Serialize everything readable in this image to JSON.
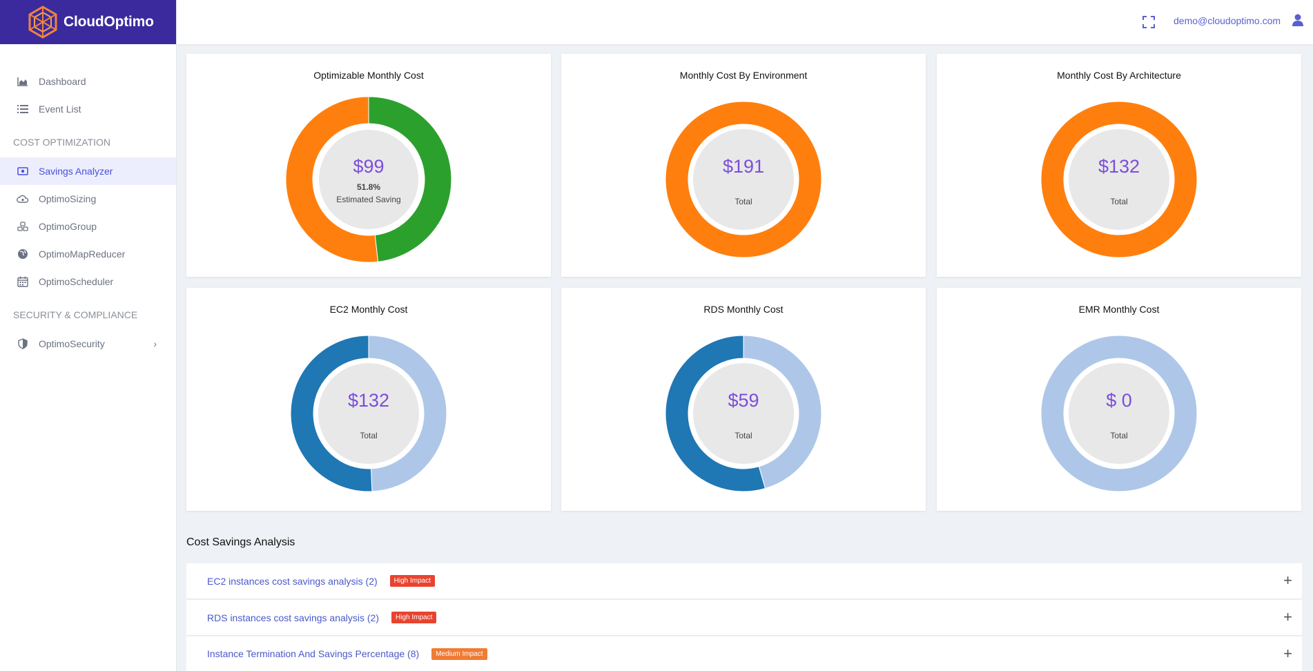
{
  "app": {
    "brand": "CloudOptimo"
  },
  "header": {
    "user_email": "demo@cloudoptimo.com"
  },
  "sidebar": {
    "items_top": [
      {
        "label": "Dashboard",
        "icon": "area-chart-icon"
      },
      {
        "label": "Event List",
        "icon": "list-icon"
      }
    ],
    "section_cost": "COST OPTIMIZATION",
    "items_cost": [
      {
        "label": "Savings Analyzer",
        "icon": "money-icon",
        "active": true
      },
      {
        "label": "OptimoSizing",
        "icon": "cloud-sizing-icon"
      },
      {
        "label": "OptimoGroup",
        "icon": "cubes-icon"
      },
      {
        "label": "OptimoMapReducer",
        "icon": "globe-icon"
      },
      {
        "label": "OptimoScheduler",
        "icon": "calendar-icon"
      }
    ],
    "section_security": "SECURITY & COMPLIANCE",
    "items_security": [
      {
        "label": "OptimoSecurity",
        "icon": "shield-icon"
      }
    ]
  },
  "cards": [
    {
      "title": "Optimizable Monthly Cost",
      "value": "$99",
      "percent": "51.8%",
      "subtitle": "Estimated Saving",
      "segments": [
        {
          "fraction": 0.482,
          "color": "#2ca02c"
        },
        {
          "fraction": 0.518,
          "color": "#ff7f0e"
        }
      ]
    },
    {
      "title": "Monthly Cost By Environment",
      "value": "$191",
      "subtitle": "Total",
      "segments": [
        {
          "fraction": 1.0,
          "color": "#ff7f0e"
        }
      ]
    },
    {
      "title": "Monthly Cost By Architecture",
      "value": "$132",
      "subtitle": "Total",
      "segments": [
        {
          "fraction": 1.0,
          "color": "#ff7f0e"
        }
      ]
    },
    {
      "title": "EC2 Monthly Cost",
      "value": "$132",
      "subtitle": "Total",
      "segments": [
        {
          "fraction": 0.493,
          "color": "#aec7e8"
        },
        {
          "fraction": 0.507,
          "color": "#1f77b4"
        }
      ]
    },
    {
      "title": "RDS Monthly Cost",
      "value": "$59",
      "subtitle": "Total",
      "segments": [
        {
          "fraction": 0.455,
          "color": "#aec7e8"
        },
        {
          "fraction": 0.545,
          "color": "#1f77b4"
        }
      ]
    },
    {
      "title": "EMR Monthly Cost",
      "value": "$ 0",
      "subtitle": "Total",
      "segments": [
        {
          "fraction": 1.0,
          "color": "#aec7e8"
        }
      ]
    }
  ],
  "analysis": {
    "title": "Cost Savings Analysis",
    "rows": [
      {
        "label": "EC2 instances cost savings analysis (2)",
        "badge": "High Impact",
        "level": "high"
      },
      {
        "label": "RDS instances cost savings analysis (2)",
        "badge": "High Impact",
        "level": "high"
      },
      {
        "label": "Instance Termination And Savings Percentage (8)",
        "badge": "Medium Impact",
        "level": "medium"
      }
    ]
  },
  "colors": {
    "accent": "#4a4fd8",
    "brand_bg": "#3a2a9d",
    "value_purple": "#7c4ddb"
  }
}
